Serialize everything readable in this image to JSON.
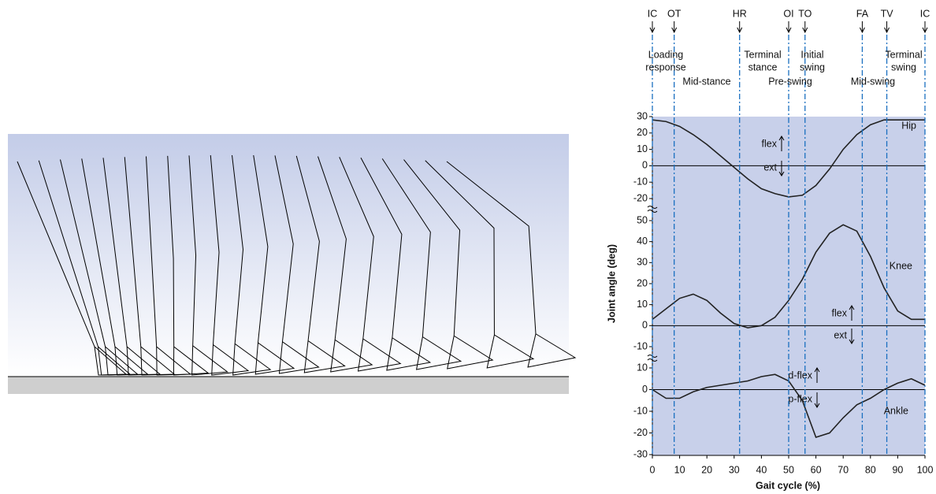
{
  "chart_data": {
    "type": "line",
    "y_label": "Joint angle (deg)",
    "x_label": "Gait cycle (%)",
    "xlim": [
      0,
      100
    ],
    "xticks": [
      0,
      10,
      20,
      30,
      40,
      50,
      60,
      70,
      80,
      90,
      100
    ],
    "x": [
      0,
      5,
      10,
      15,
      20,
      25,
      30,
      35,
      40,
      45,
      50,
      55,
      60,
      65,
      70,
      75,
      80,
      85,
      90,
      95,
      100
    ],
    "events": [
      {
        "label": "IC",
        "x": 0
      },
      {
        "label": "OT",
        "x": 8
      },
      {
        "label": "HR",
        "x": 32
      },
      {
        "label": "OI",
        "x": 50
      },
      {
        "label": "TO",
        "x": 56
      },
      {
        "label": "FA",
        "x": 77
      },
      {
        "label": "TV",
        "x": 86
      },
      {
        "label": "IC",
        "x": 100
      }
    ],
    "phases": [
      {
        "lines": [
          "Loading",
          "response"
        ]
      },
      {
        "lines": [
          "Mid-stance"
        ]
      },
      {
        "lines": [
          "Terminal",
          "stance"
        ]
      },
      {
        "lines": [
          "Pre-swing"
        ]
      },
      {
        "lines": [
          "Initial",
          "swing"
        ]
      },
      {
        "lines": [
          "Mid-swing"
        ]
      },
      {
        "lines": [
          "Terminal",
          "swing"
        ]
      }
    ],
    "color": "#222222",
    "background": "#c8d0ea",
    "panels": [
      {
        "name": "Hip",
        "ylim": [
          -20,
          30
        ],
        "yticks": [
          30,
          20,
          10,
          0,
          -10,
          -20
        ],
        "up_label": "flex",
        "down_label": "ext",
        "values": [
          28,
          27,
          24,
          19,
          13,
          6,
          -1,
          -8,
          -14,
          -17,
          -19,
          -18,
          -12,
          -2,
          10,
          19,
          25,
          28,
          28,
          28,
          28
        ]
      },
      {
        "name": "Knee",
        "ylim": [
          -10,
          50
        ],
        "yticks": [
          50,
          40,
          30,
          20,
          10,
          0,
          -10
        ],
        "up_label": "flex",
        "down_label": "ext",
        "values": [
          3,
          8,
          13,
          15,
          12,
          6,
          1,
          -1,
          0,
          4,
          12,
          22,
          35,
          44,
          48,
          45,
          33,
          18,
          7,
          3,
          3
        ]
      },
      {
        "name": "Ankle",
        "ylim": [
          -30,
          10
        ],
        "yticks": [
          10,
          0,
          -10,
          -20,
          -30
        ],
        "up_label": "d-flex",
        "down_label": "p-flex",
        "values": [
          0,
          -4,
          -4,
          -1,
          1,
          2,
          3,
          4,
          6,
          7,
          4,
          -5,
          -22,
          -20,
          -13,
          -7,
          -4,
          0,
          3,
          5,
          2
        ]
      }
    ]
  }
}
